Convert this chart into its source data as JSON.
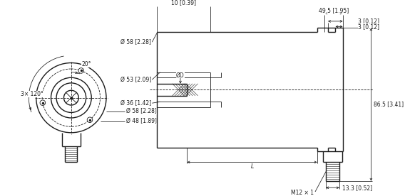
{
  "bg_color": "#ffffff",
  "line_color": "#1a1a1a",
  "fig_width": 5.68,
  "fig_height": 2.76,
  "dpi": 100,
  "lw_main": 1.0,
  "lw_thin": 0.6,
  "lw_dim": 0.55,
  "fs": 5.5,
  "annotations": {
    "angle_20": "20°",
    "bolt_pattern": "3× 120°",
    "d58": "Ø 58 [2.28]",
    "d48": "Ø 48 [1.89]",
    "d53": "Ø 53 [2.09]",
    "d36": "Ø 36 [1.42]",
    "dD": "ØD",
    "dim_495": "49.5 [1.95]",
    "dim_3a": "3 [0.12]",
    "dim_3b": "3 [0.12]",
    "dim_10": "10 [0.39]",
    "dim_865": "86.5 [3.41]",
    "dim_133": "13.3 [0.52]",
    "dim_L": "L",
    "m12": "M12 × 1"
  }
}
